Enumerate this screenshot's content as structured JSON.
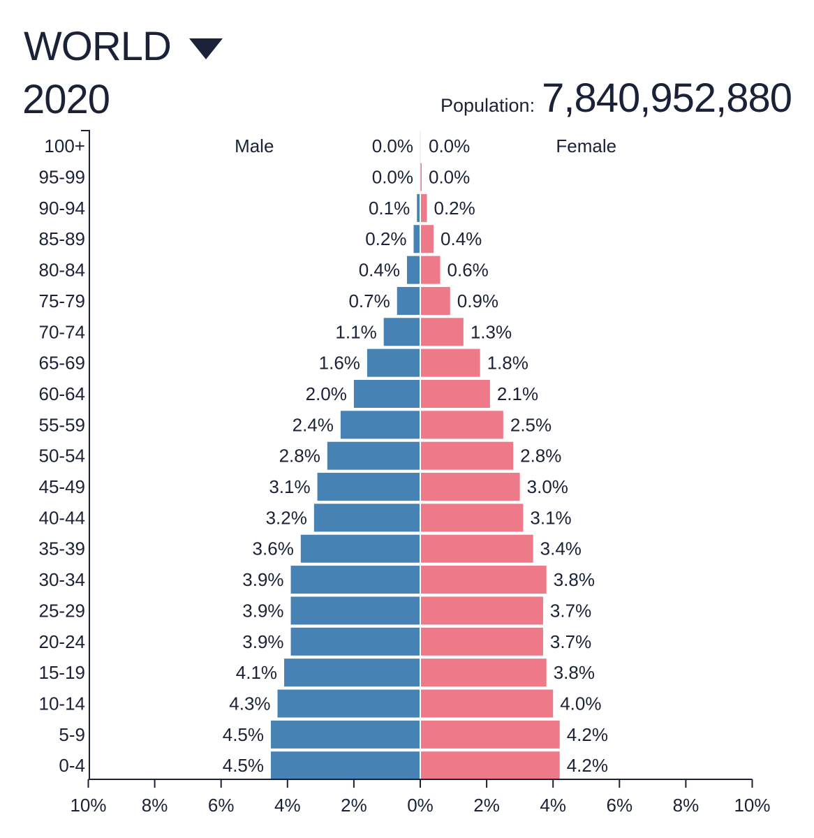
{
  "header": {
    "region": "WORLD",
    "year": "2020",
    "population_label": "Population:",
    "population_value": "7,840,952,880"
  },
  "colors": {
    "male": "#4682b4",
    "female": "#ee7989",
    "axis": "#1b2137",
    "text": "#1b2137"
  },
  "chart_data": {
    "type": "bar",
    "orientation": "horizontal",
    "title": "WORLD 2020 population pyramid",
    "categories": [
      "100+",
      "95-99",
      "90-94",
      "85-89",
      "80-84",
      "75-79",
      "70-74",
      "65-69",
      "60-64",
      "55-59",
      "50-54",
      "45-49",
      "40-44",
      "35-39",
      "30-34",
      "25-29",
      "20-24",
      "15-19",
      "10-14",
      "5-9",
      "0-4"
    ],
    "series": [
      {
        "name": "Male",
        "values": [
          0.0,
          0.0,
          0.1,
          0.2,
          0.4,
          0.7,
          1.1,
          1.6,
          2.0,
          2.4,
          2.8,
          3.1,
          3.2,
          3.6,
          3.9,
          3.9,
          3.9,
          4.1,
          4.3,
          4.5,
          4.5
        ],
        "labels": [
          "0.0%",
          "0.0%",
          "0.1%",
          "0.2%",
          "0.4%",
          "0.7%",
          "1.1%",
          "1.6%",
          "2.0%",
          "2.4%",
          "2.8%",
          "3.1%",
          "3.2%",
          "3.6%",
          "3.9%",
          "3.9%",
          "3.9%",
          "4.1%",
          "4.3%",
          "4.5%",
          "4.5%"
        ]
      },
      {
        "name": "Female",
        "values": [
          0.0,
          0.0,
          0.2,
          0.4,
          0.6,
          0.9,
          1.3,
          1.8,
          2.1,
          2.5,
          2.8,
          3.0,
          3.1,
          3.4,
          3.8,
          3.7,
          3.7,
          3.8,
          4.0,
          4.2,
          4.2
        ],
        "labels": [
          "0.0%",
          "0.0%",
          "0.2%",
          "0.4%",
          "0.6%",
          "0.9%",
          "1.3%",
          "1.8%",
          "2.1%",
          "2.5%",
          "2.8%",
          "3.0%",
          "3.1%",
          "3.4%",
          "3.8%",
          "3.7%",
          "3.7%",
          "3.8%",
          "4.0%",
          "4.2%",
          "4.2%"
        ]
      }
    ],
    "x_ticks": [
      "10%",
      "8%",
      "6%",
      "4%",
      "2%",
      "0%",
      "2%",
      "4%",
      "6%",
      "8%",
      "10%"
    ],
    "xlim": [
      -10,
      10
    ],
    "legend": [
      "Male",
      "Female"
    ],
    "xlabel": "",
    "ylabel": ""
  }
}
